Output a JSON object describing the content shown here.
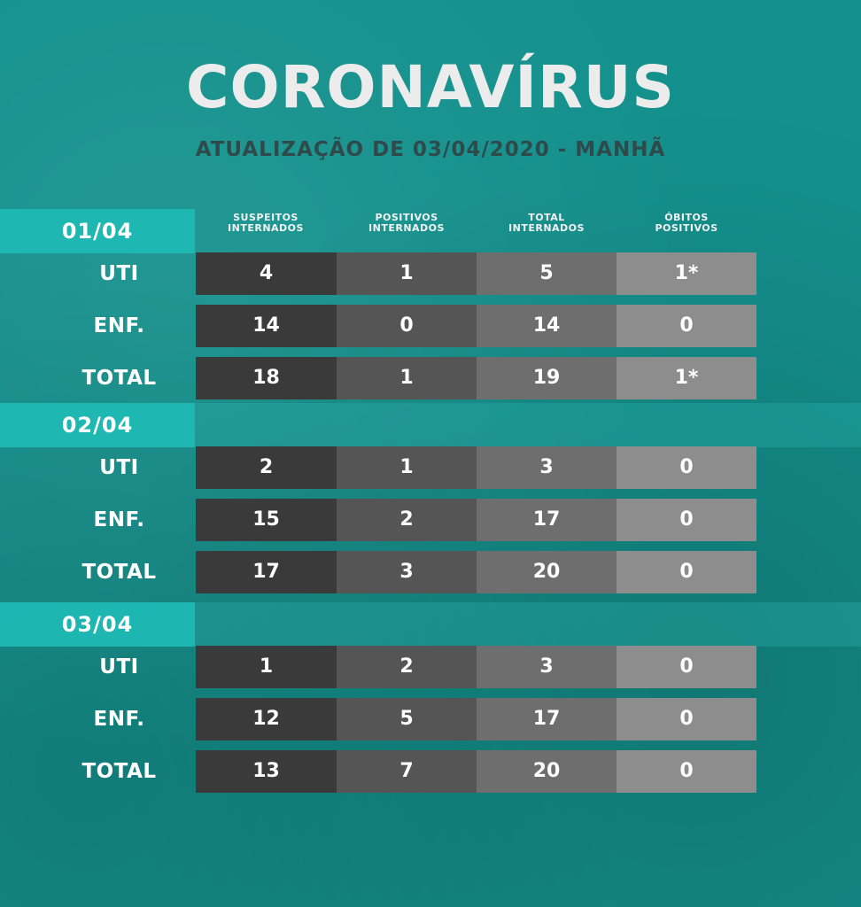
{
  "title": "CORONAVÍRUS",
  "subtitle": "ATUALIZAÇÃO DE 03/04/2020 - MANHÃ",
  "columns": [
    "SUSPEITOS\nINTERNADOS",
    "POSITIVOS\nINTERNADOS",
    "TOTAL\nINTERNADOS",
    "ÓBITOS\nPOSITIVOS"
  ],
  "groups": [
    {
      "date": "01/04",
      "rows": [
        {
          "label": "UTI",
          "values": [
            "4",
            "1",
            "5",
            "1*"
          ]
        },
        {
          "label": "ENF.",
          "values": [
            "14",
            "0",
            "14",
            "0"
          ]
        },
        {
          "label": "TOTAL",
          "values": [
            "18",
            "1",
            "19",
            "1*"
          ]
        }
      ]
    },
    {
      "date": "02/04",
      "rows": [
        {
          "label": "UTI",
          "values": [
            "2",
            "1",
            "3",
            "0"
          ]
        },
        {
          "label": "ENF.",
          "values": [
            "15",
            "2",
            "17",
            "0"
          ]
        },
        {
          "label": "TOTAL",
          "values": [
            "17",
            "3",
            "20",
            "0"
          ]
        }
      ]
    },
    {
      "date": "03/04",
      "rows": [
        {
          "label": "UTI",
          "values": [
            "1",
            "2",
            "3",
            "0"
          ]
        },
        {
          "label": "ENF.",
          "values": [
            "12",
            "5",
            "17",
            "0"
          ]
        },
        {
          "label": "TOTAL",
          "values": [
            "13",
            "7",
            "20",
            "0"
          ]
        }
      ]
    }
  ]
}
